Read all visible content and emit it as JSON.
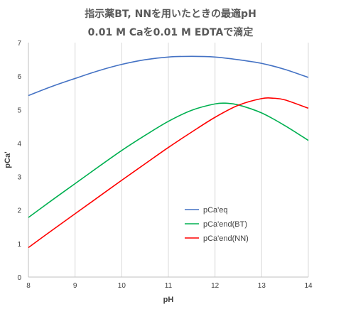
{
  "chart_data": {
    "type": "line",
    "title": "指示薬BT, NNを用いたときの最適pH",
    "subtitle": "0.01 M Caを0.01 M EDTAで滴定",
    "xlabel": "pH",
    "ylabel": "pCa'",
    "xlim": [
      8,
      14
    ],
    "ylim": [
      0,
      7
    ],
    "xticks": [
      8,
      9,
      10,
      11,
      12,
      13,
      14
    ],
    "yticks": [
      0,
      1,
      2,
      3,
      4,
      5,
      6,
      7
    ],
    "grid": "vertical",
    "legend_position": "center-right",
    "series": [
      {
        "name": "pCa'eq",
        "color": "#4472C4",
        "x": [
          8,
          8.5,
          9,
          9.5,
          10,
          10.5,
          11,
          11.5,
          12,
          12.5,
          13,
          13.5,
          14
        ],
        "y": [
          5.42,
          5.69,
          5.93,
          6.16,
          6.35,
          6.49,
          6.57,
          6.59,
          6.57,
          6.49,
          6.38,
          6.2,
          5.96
        ]
      },
      {
        "name": "pCa'end(BT)",
        "color": "#00B050",
        "x": [
          8,
          8.5,
          9,
          9.5,
          10,
          10.5,
          11,
          11.5,
          12,
          12.25,
          12.5,
          13,
          13.5,
          14
        ],
        "y": [
          1.78,
          2.29,
          2.79,
          3.29,
          3.78,
          4.23,
          4.65,
          4.98,
          5.17,
          5.19,
          5.14,
          4.9,
          4.52,
          4.08
        ]
      },
      {
        "name": "pCa'end(NN)",
        "color": "#FF0000",
        "x": [
          8,
          8.5,
          9,
          9.5,
          10,
          10.5,
          11,
          11.5,
          12,
          12.5,
          13,
          13.25,
          13.5,
          14
        ],
        "y": [
          0.88,
          1.39,
          1.89,
          2.39,
          2.89,
          3.38,
          3.87,
          4.33,
          4.77,
          5.13,
          5.33,
          5.34,
          5.29,
          5.04
        ]
      }
    ]
  }
}
